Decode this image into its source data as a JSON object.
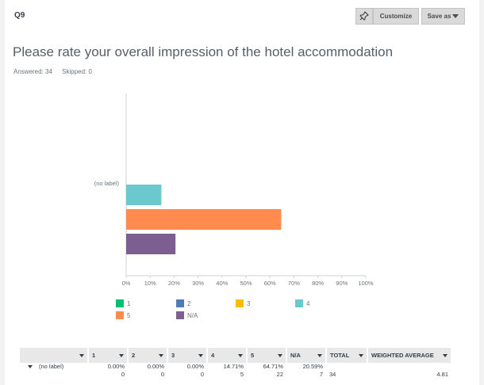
{
  "question": {
    "number": "Q9",
    "title": "Please rate your overall impression of the hotel accommodation"
  },
  "toolbar": {
    "customize_label": "Customize",
    "save_as_label": "Save as",
    "pin_icon": "pin-icon"
  },
  "meta": {
    "answered": "Answered: 34",
    "skipped": "Skipped: 0"
  },
  "chart_data": {
    "type": "bar",
    "orientation": "horizontal",
    "categories": [
      "(no label)"
    ],
    "series": [
      {
        "name": "1",
        "values": [
          0
        ],
        "color": "#00bf6f"
      },
      {
        "name": "2",
        "values": [
          0
        ],
        "color": "#507cb6"
      },
      {
        "name": "3",
        "values": [
          0
        ],
        "color": "#f9be00"
      },
      {
        "name": "4",
        "values": [
          14.71
        ],
        "color": "#6bc8cd"
      },
      {
        "name": "5",
        "values": [
          64.71
        ],
        "color": "#ff8b4f"
      },
      {
        "name": "N/A",
        "values": [
          20.59
        ],
        "color": "#7d5e90"
      }
    ],
    "xlim": [
      0,
      100
    ],
    "xticks": [
      "0%",
      "10%",
      "20%",
      "30%",
      "40%",
      "50%",
      "60%",
      "70%",
      "80%",
      "90%",
      "100%"
    ],
    "legend_position": "bottom",
    "grid": false
  },
  "table": {
    "headers": [
      "",
      "1",
      "2",
      "3",
      "4",
      "5",
      "N/A",
      "TOTAL",
      "WEIGHTED AVERAGE"
    ],
    "rows": [
      {
        "label": "(no label)",
        "percents": [
          "0.00%",
          "0.00%",
          "0.00%",
          "14.71%",
          "64.71%",
          "20.59%"
        ],
        "counts": [
          "0",
          "0",
          "0",
          "5",
          "22",
          "7"
        ],
        "total": "34",
        "weighted_average": "4.81"
      }
    ]
  }
}
